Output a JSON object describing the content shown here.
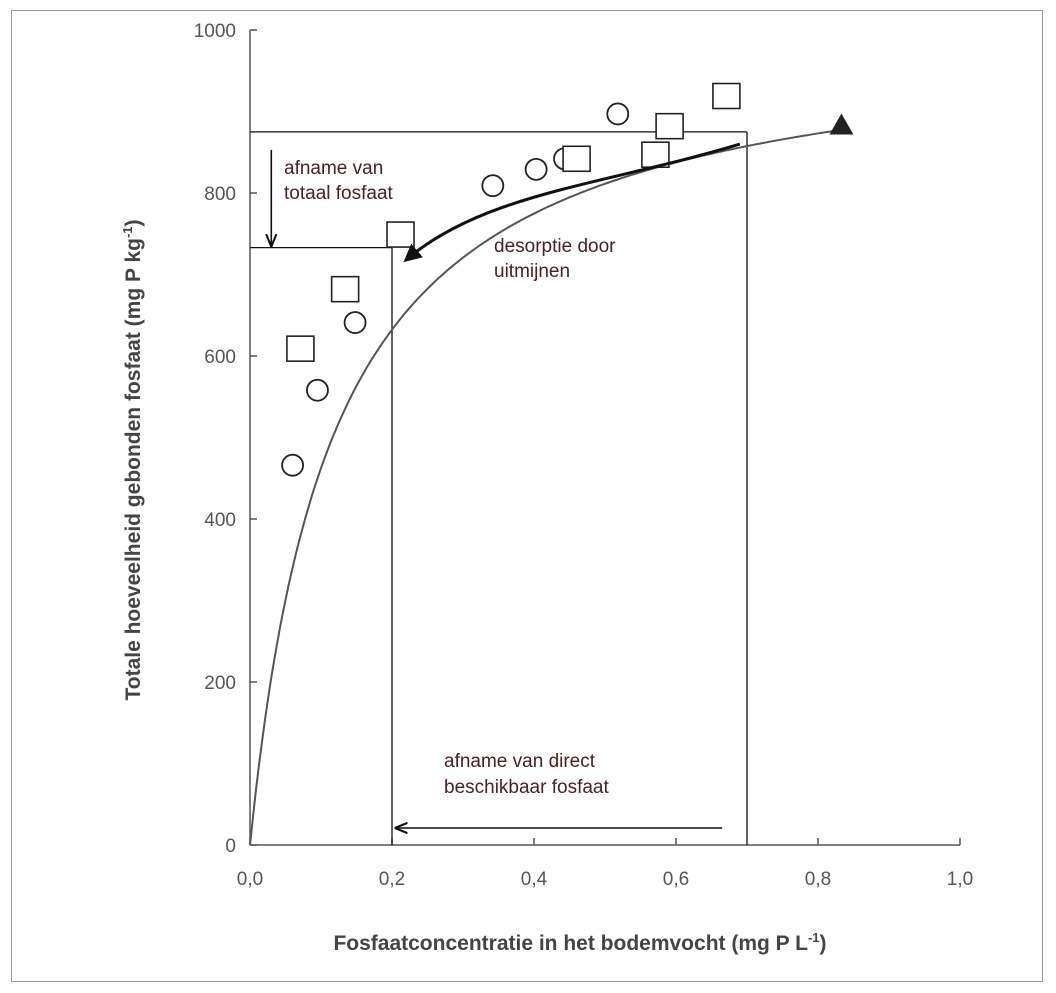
{
  "chart_data": {
    "type": "scatter",
    "xlabel": "Fosfaatconcentratie in het bodemvocht (mg P L",
    "xlabel_sup": "-1",
    "xlabel_end": ")",
    "ylabel": "Totale hoeveelheid gebonden fosfaat (mg P kg",
    "ylabel_sup": "-1",
    "ylabel_end": ")",
    "xlim": [
      0,
      1.0
    ],
    "ylim": [
      0,
      1000
    ],
    "x_ticks": [
      0,
      0.2,
      0.4,
      0.6,
      0.8,
      1.0
    ],
    "x_tick_labels": [
      "0,0",
      "0,2",
      "0,4",
      "0,6",
      "0,8",
      "1,0"
    ],
    "y_ticks": [
      0,
      200,
      400,
      600,
      800,
      1000
    ],
    "y_tick_labels": [
      "0",
      "200",
      "400",
      "600",
      "800",
      "1000"
    ],
    "grid": false,
    "series": [
      {
        "marker": "circle",
        "points": [
          [
            0.06,
            466
          ],
          [
            0.095,
            558
          ],
          [
            0.148,
            641
          ],
          [
            0.342,
            809
          ],
          [
            0.403,
            829
          ],
          [
            0.443,
            842
          ],
          [
            0.518,
            897
          ]
        ]
      },
      {
        "marker": "square",
        "points": [
          [
            0.071,
            609
          ],
          [
            0.134,
            682
          ],
          [
            0.212,
            749
          ],
          [
            0.46,
            842
          ],
          [
            0.571,
            847
          ],
          [
            0.591,
            882
          ],
          [
            0.671,
            919
          ]
        ]
      },
      {
        "marker": "triangle",
        "points": [
          [
            0.833,
            884
          ]
        ]
      }
    ],
    "fit_curve": {
      "type": "langmuir",
      "qmax": 1000,
      "k": 8.6,
      "x_range": [
        0,
        0.835
      ]
    },
    "reference_lines": {
      "upper_y": 875,
      "lower_y": 733,
      "high_x": 0.7,
      "low_x": 0.2
    },
    "annotations": [
      {
        "id": "total",
        "lines": [
          "afname van",
          "totaal fosfaat"
        ]
      },
      {
        "id": "desorption",
        "lines": [
          "desorptie door",
          "uitmijnen"
        ]
      },
      {
        "id": "direct",
        "lines": [
          "afname van direct",
          "beschikbaar fosfaat"
        ]
      }
    ]
  }
}
